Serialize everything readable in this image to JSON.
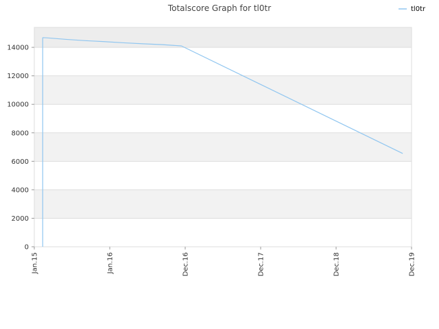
{
  "chart_data": {
    "type": "line",
    "title": "Totalscore Graph for tl0tr",
    "xlabel": "",
    "ylabel": "",
    "x_ticks": [
      "Jan.15",
      "Jan.16",
      "Dec.16",
      "Dec.17",
      "Dec.18",
      "Dec.19"
    ],
    "y_ticks": [
      "0",
      "2000",
      "4000",
      "6000",
      "8000",
      "10000",
      "12000",
      "14000"
    ],
    "ylim": [
      0,
      15400
    ],
    "xlim": [
      "2015-01-01",
      "2019-12-01"
    ],
    "grid": true,
    "legend_position": "top-right",
    "series": [
      {
        "name": "tl0tr",
        "color": "#90c6f0",
        "points": [
          {
            "x": "2015-02-10",
            "y": 0
          },
          {
            "x": "2015-02-10",
            "y": 14680
          },
          {
            "x": "2015-03-01",
            "y": 14670
          },
          {
            "x": "2015-06-01",
            "y": 14560
          },
          {
            "x": "2015-09-01",
            "y": 14470
          },
          {
            "x": "2015-12-01",
            "y": 14400
          },
          {
            "x": "2016-03-01",
            "y": 14320
          },
          {
            "x": "2016-06-01",
            "y": 14250
          },
          {
            "x": "2016-09-01",
            "y": 14190
          },
          {
            "x": "2016-12-01",
            "y": 14100
          },
          {
            "x": "2019-10-20",
            "y": 6550
          }
        ]
      }
    ]
  }
}
